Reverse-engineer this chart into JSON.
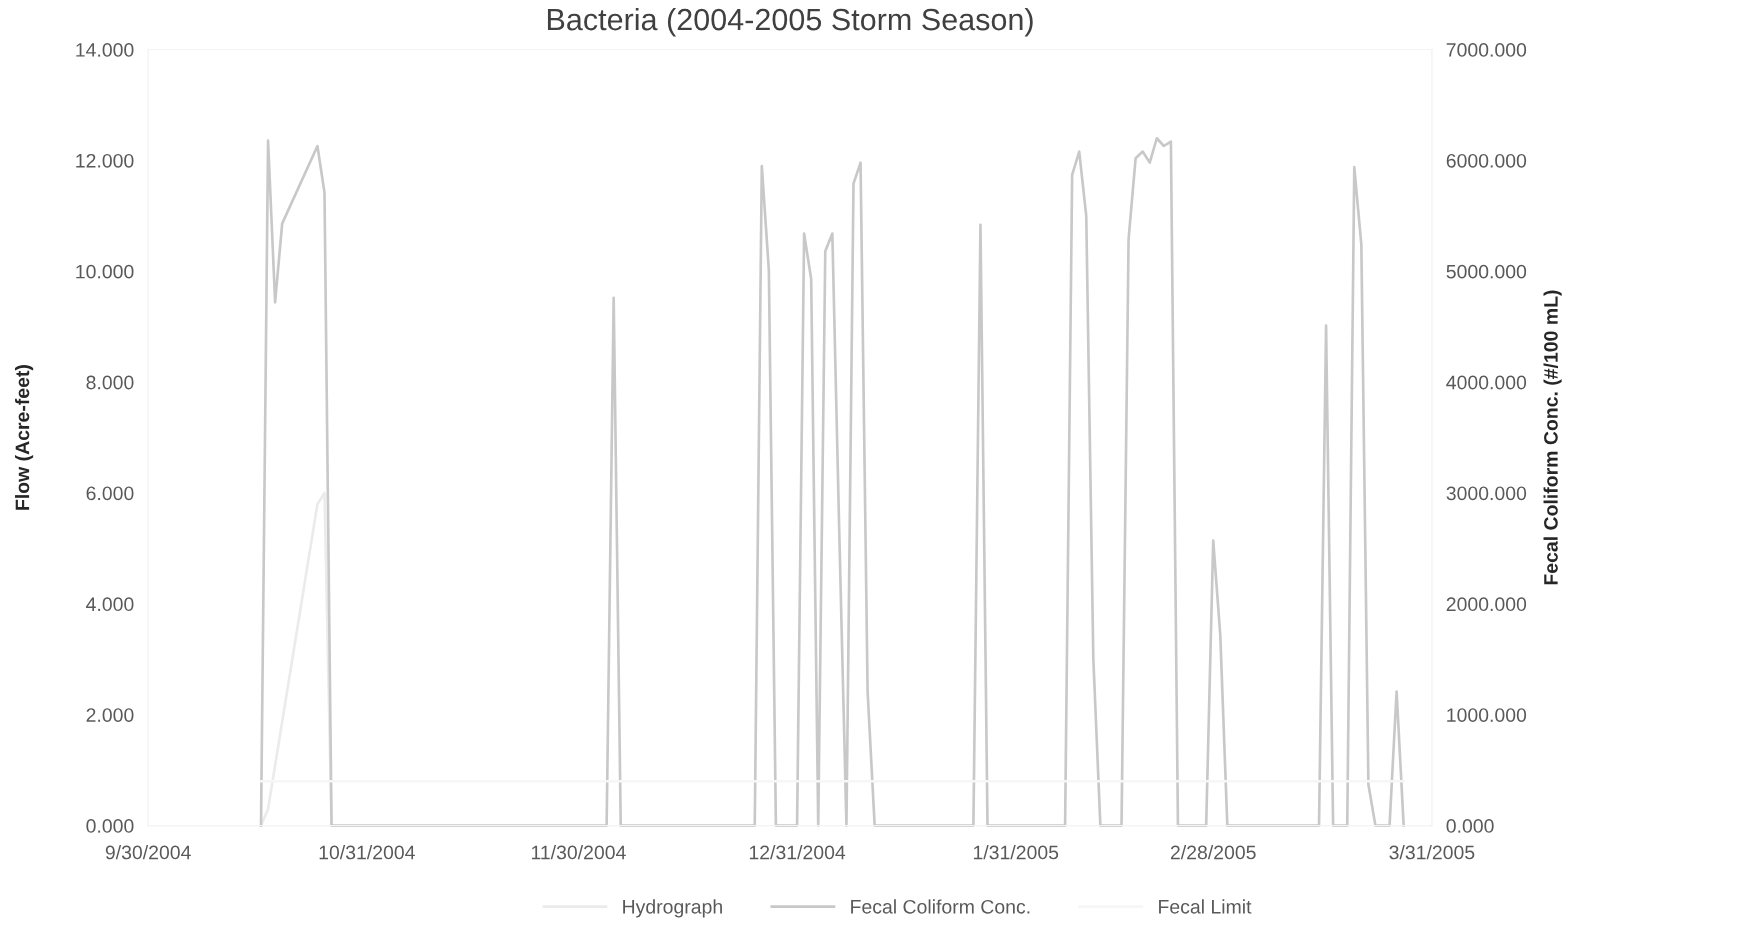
{
  "chart_data": {
    "type": "line",
    "title": "Bacteria (2004-2005 Storm Season)",
    "ylabel": "Flow (Acre-feet)",
    "y2label": "Fecal Coliform Conc. (#/100 mL)",
    "xlim": [
      "2004-09-30",
      "2005-03-31"
    ],
    "xticks": [
      {
        "value": "2004-09-30",
        "label": "9/30/2004"
      },
      {
        "value": "2004-10-31",
        "label": "10/31/2004"
      },
      {
        "value": "2004-11-30",
        "label": "11/30/2004"
      },
      {
        "value": "2004-12-31",
        "label": "12/31/2004"
      },
      {
        "value": "2005-01-31",
        "label": "1/31/2005"
      },
      {
        "value": "2005-02-28",
        "label": "2/28/2005"
      },
      {
        "value": "2005-03-31",
        "label": "3/31/2005"
      }
    ],
    "ylim": [
      0,
      14
    ],
    "yticks": [
      {
        "value": 0,
        "label": "0.000"
      },
      {
        "value": 2,
        "label": "2.000"
      },
      {
        "value": 4,
        "label": "4.000"
      },
      {
        "value": 6,
        "label": "6.000"
      },
      {
        "value": 8,
        "label": "8.000"
      },
      {
        "value": 10,
        "label": "10.000"
      },
      {
        "value": 12,
        "label": "12.000"
      },
      {
        "value": 14,
        "label": "14.000"
      }
    ],
    "y2lim": [
      0,
      7000
    ],
    "y2ticks": [
      {
        "value": 0,
        "label": "0.000"
      },
      {
        "value": 1000,
        "label": "1000.000"
      },
      {
        "value": 2000,
        "label": "2000.000"
      },
      {
        "value": 3000,
        "label": "3000.000"
      },
      {
        "value": 4000,
        "label": "4000.000"
      },
      {
        "value": 5000,
        "label": "5000.000"
      },
      {
        "value": 6000,
        "label": "6000.000"
      },
      {
        "value": 7000,
        "label": "7000.000"
      }
    ],
    "legend": "bottom",
    "series": [
      {
        "name": "Hydrograph",
        "color": "#ebebeb",
        "axis": "y",
        "x": [
          "2004-10-16",
          "2004-10-17",
          "2004-10-24",
          "2004-10-25",
          "2004-10-26"
        ],
        "values": [
          0,
          0.3,
          5.8,
          6.0,
          0
        ]
      },
      {
        "name": "Fecal Coliform Conc.",
        "color": "#c8c8c8",
        "axis": "y2",
        "x": [
          "2004-10-16",
          "2004-10-17",
          "2004-10-18",
          "2004-10-19",
          "2004-10-24",
          "2004-10-25",
          "2004-10-26",
          "2004-12-04",
          "2004-12-05",
          "2004-12-06",
          "2004-12-25",
          "2004-12-26",
          "2004-12-27",
          "2004-12-28",
          "2004-12-31",
          "2005-01-01",
          "2005-01-02",
          "2005-01-03",
          "2005-01-04",
          "2005-01-05",
          "2005-01-06",
          "2005-01-07",
          "2005-01-08",
          "2005-01-09",
          "2005-01-10",
          "2005-01-11",
          "2005-01-25",
          "2005-01-26",
          "2005-01-27",
          "2005-02-07",
          "2005-02-08",
          "2005-02-09",
          "2005-02-10",
          "2005-02-11",
          "2005-02-12",
          "2005-02-15",
          "2005-02-16",
          "2005-02-17",
          "2005-02-18",
          "2005-02-19",
          "2005-02-20",
          "2005-02-21",
          "2005-02-22",
          "2005-02-23",
          "2005-02-27",
          "2005-02-28",
          "2005-03-01",
          "2005-03-02",
          "2005-03-15",
          "2005-03-16",
          "2005-03-17",
          "2005-03-19",
          "2005-03-20",
          "2005-03-21",
          "2005-03-22",
          "2005-03-23",
          "2005-03-25",
          "2005-03-26",
          "2005-03-27"
        ],
        "values": [
          0,
          6180,
          4720,
          5430,
          6130,
          5710,
          0,
          0,
          4760,
          0,
          0,
          5950,
          5010,
          0,
          0,
          5340,
          4930,
          0,
          5180,
          5340,
          2600,
          0,
          5790,
          5980,
          1210,
          0,
          0,
          5420,
          0,
          0,
          5870,
          6080,
          5500,
          1510,
          0,
          0,
          5290,
          6020,
          6080,
          5980,
          6200,
          6130,
          6170,
          0,
          0,
          2570,
          1720,
          0,
          0,
          4510,
          0,
          0,
          5940,
          5240,
          370,
          0,
          0,
          1210,
          0
        ]
      },
      {
        "name": "Fecal Limit",
        "color": "#f6f6f6",
        "axis": "y2",
        "x": [
          "2004-10-16",
          "2005-03-27"
        ],
        "values": [
          400,
          400
        ]
      }
    ]
  }
}
